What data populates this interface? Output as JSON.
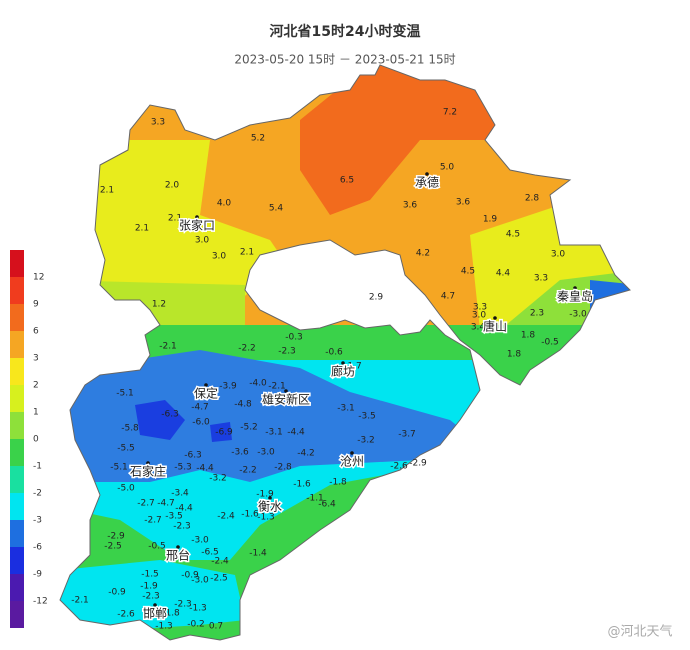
{
  "header": {
    "title": "河北省15时24小时变温",
    "subtitle": "2023-05-20 15时 － 2023-05-21 15时"
  },
  "legend": {
    "labels": [
      "12",
      "9",
      "6",
      "3",
      "2",
      "1",
      "0",
      "-1",
      "-2",
      "-3",
      "-6",
      "-9",
      "-12"
    ]
  },
  "cities": [
    "张家口",
    "承德",
    "秦皇岛",
    "唐山",
    "廊坊",
    "保定",
    "雄安新区",
    "沧州",
    "石家庄",
    "衡水",
    "邢台",
    "邯郸"
  ],
  "stations": [
    "3.3",
    "5.2",
    "7.2",
    "6.5",
    "5.0",
    "2.1",
    "2.0",
    "4.0",
    "5.4",
    "3.6",
    "3.6",
    "2.8",
    "2.1",
    "2.1",
    "1.9",
    "4.5",
    "3.0",
    "3.0",
    "2.1",
    "4.2",
    "3.0",
    "4.5",
    "4.4",
    "3.3",
    "1.2",
    "4.7",
    "2.9",
    "3.3",
    "2.3",
    "-3.0",
    "3.0",
    "3.4",
    "1.8",
    "-0.5",
    "1.8",
    "-2.1",
    "-0.3",
    "-2.2",
    "-2.3",
    "-0.6",
    "-5.1",
    "-3.9",
    "-4.0",
    "-2.1",
    "-1.7",
    "-4.7",
    "-4.8",
    "-3.1",
    "-6.3",
    "-6.0",
    "-5.2",
    "-3.5",
    "-5.8",
    "-6.9",
    "-3.1",
    "-4.4",
    "-3.7",
    "-5.5",
    "-3.6",
    "-3.0",
    "-4.2",
    "-3.2",
    "-6.3",
    "-5.3",
    "-4.4",
    "-2.8",
    "-2.6",
    "-2.9",
    "-5.1",
    "-2.2",
    "-3.2",
    "-1.6",
    "-1.8",
    "-5.0",
    "-3.4",
    "-1.9",
    "-1.1",
    "-6.4",
    "-2.7",
    "-4.7",
    "-4.4",
    "-2.4",
    "-1.6",
    "-1.3",
    "-3.5",
    "-2.7",
    "-2.3",
    "-2.9",
    "-3.0",
    "-2.5",
    "-0.5",
    "-1.4",
    "-6.5",
    "-2.4",
    "-1.5",
    "-0.9",
    "-1.9",
    "-3.0",
    "-2.5",
    "-0.9",
    "-2.3",
    "-2.1",
    "-2.3",
    "-1.3",
    "-2.6",
    "-1.8",
    "-1.3",
    "-0.2",
    "0.7"
  ],
  "watermark": "@河北天气"
}
